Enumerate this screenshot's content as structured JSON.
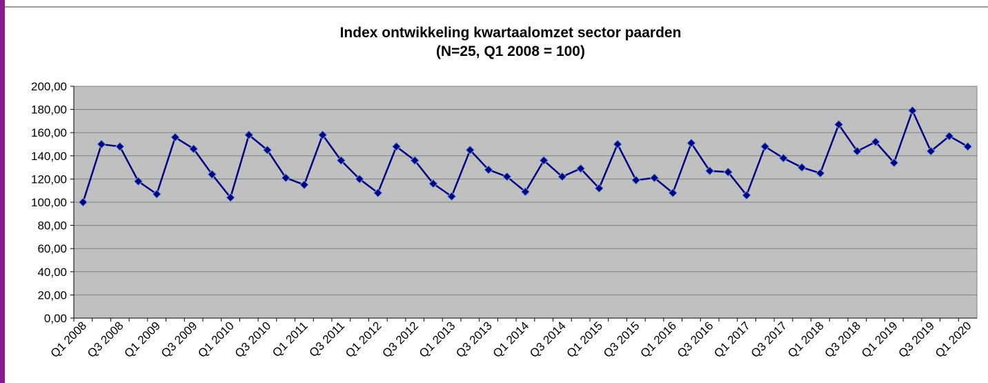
{
  "chart_data": {
    "type": "line",
    "title": "Index ontwikkeling kwartaalomzet sector paarden",
    "subtitle": "(N=25, Q1 2008 = 100)",
    "categories": [
      "Q1 2008",
      null,
      "Q3 2008",
      null,
      "Q1 2009",
      null,
      "Q3 2009",
      null,
      "Q1 2010",
      null,
      "Q3 2010",
      null,
      "Q1 2011",
      null,
      "Q3 2011",
      null,
      "Q1 2012",
      null,
      "Q3 2012",
      null,
      "Q1 2013",
      null,
      "Q3 2013",
      null,
      "Q1 2014",
      null,
      "Q3 2014",
      null,
      "Q1 2015",
      null,
      "Q3 2015",
      null,
      "Q1 2016",
      null,
      "Q3 2016",
      null,
      "Q1 2017",
      null,
      "Q3 2017",
      null,
      "Q1 2018",
      null,
      "Q3 2018",
      null,
      "Q1 2019",
      null,
      "Q3 2019",
      null,
      "Q1 2020"
    ],
    "values": [
      100,
      150,
      148,
      118,
      107,
      156,
      146,
      124,
      104,
      158,
      145,
      121,
      115,
      158,
      136,
      120,
      108,
      148,
      136,
      116,
      105,
      145,
      128,
      122,
      109,
      136,
      122,
      129,
      112,
      150,
      119,
      121,
      108,
      151,
      127,
      126,
      106,
      148,
      138,
      130,
      125,
      167,
      144,
      152,
      134,
      179,
      144,
      157,
      148
    ],
    "color": "#000080",
    "ylim": [
      0,
      200
    ],
    "yticks": [
      {
        "value": 0,
        "label": "0,00"
      },
      {
        "value": 20,
        "label": "20,00"
      },
      {
        "value": 40,
        "label": "40,00"
      },
      {
        "value": 60,
        "label": "60,00"
      },
      {
        "value": 80,
        "label": "80,00"
      },
      {
        "value": 100,
        "label": "100,00"
      },
      {
        "value": 120,
        "label": "120,00"
      },
      {
        "value": 140,
        "label": "140,00"
      },
      {
        "value": 160,
        "label": "160,00"
      },
      {
        "value": 180,
        "label": "180,00"
      },
      {
        "value": 200,
        "label": "200,00"
      }
    ],
    "grid": true
  }
}
